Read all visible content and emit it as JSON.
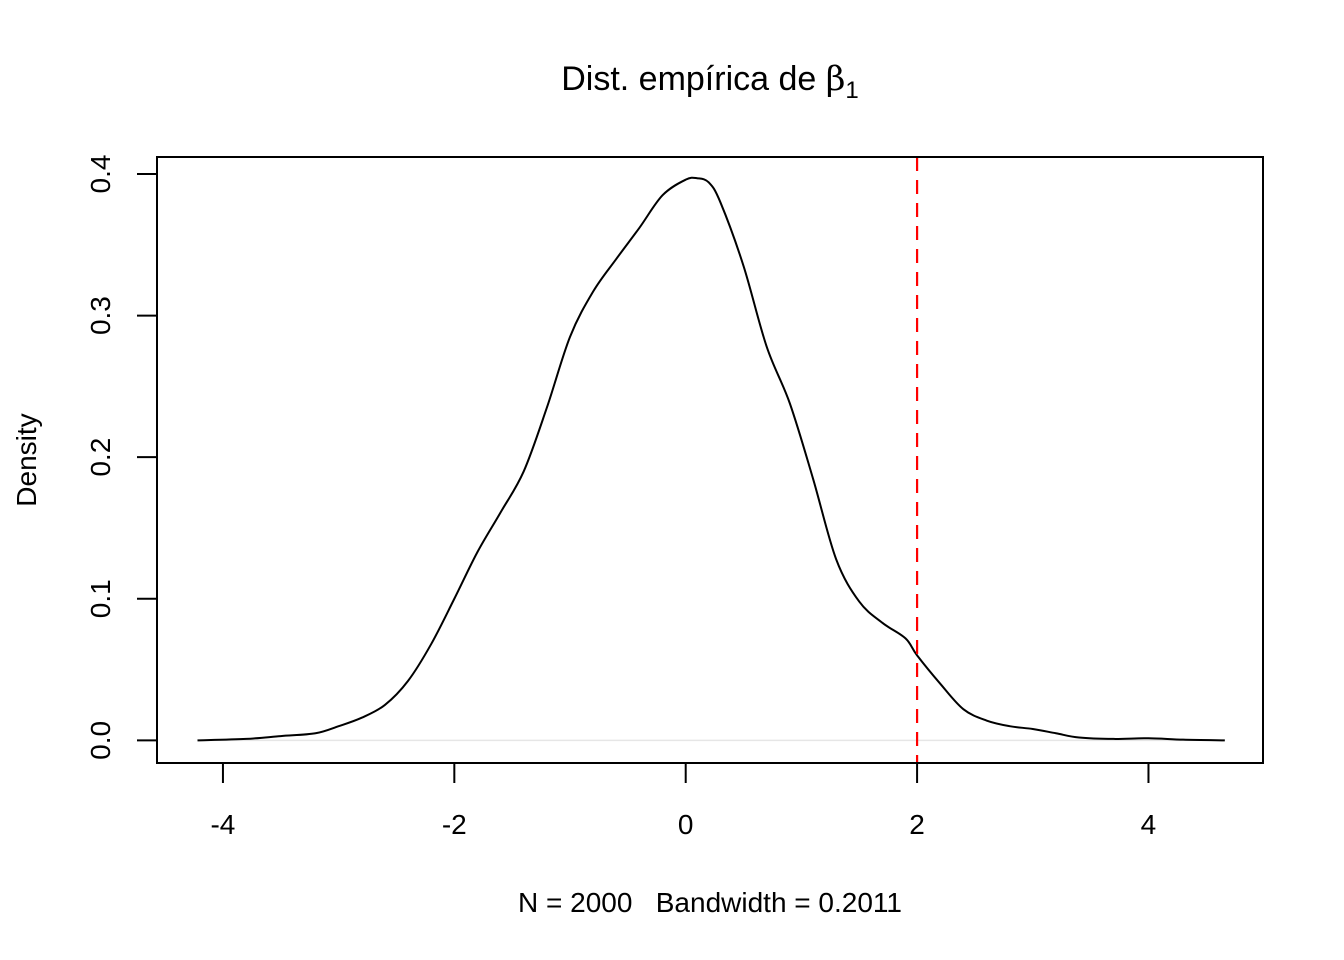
{
  "chart_data": {
    "type": "line",
    "title": "Dist. empírica de ",
    "title_symbol": "β",
    "title_subscript": "1",
    "xlabel": "N = 2000   Bandwidth = 0.2011",
    "ylabel": "Density",
    "xlim": [
      -4.57,
      4.99
    ],
    "ylim": [
      -0.016,
      0.412
    ],
    "xticks": [
      -4,
      -2,
      0,
      2,
      4
    ],
    "xtick_labels": [
      "-4",
      "-2",
      "0",
      "2",
      "4"
    ],
    "yticks": [
      0,
      0.1,
      0.2,
      0.3,
      0.4
    ],
    "ytick_labels": [
      "0.0",
      "0.1",
      "0.2",
      "0.3",
      "0.4"
    ],
    "grid": false,
    "series": [
      {
        "color": "#000000",
        "x": [
          -4.22,
          -3.8,
          -3.5,
          -3.2,
          -3.0,
          -2.8,
          -2.6,
          -2.4,
          -2.2,
          -2.0,
          -1.8,
          -1.6,
          -1.4,
          -1.2,
          -1.0,
          -0.8,
          -0.6,
          -0.4,
          -0.2,
          0.0,
          0.1,
          0.2,
          0.3,
          0.5,
          0.7,
          0.9,
          1.1,
          1.3,
          1.5,
          1.7,
          1.9,
          2.0,
          2.2,
          2.4,
          2.6,
          2.8,
          3.0,
          3.2,
          3.4,
          3.7,
          4.0,
          4.3,
          4.66
        ],
        "y": [
          0.0,
          0.001,
          0.003,
          0.005,
          0.01,
          0.016,
          0.025,
          0.042,
          0.068,
          0.1,
          0.133,
          0.161,
          0.19,
          0.235,
          0.285,
          0.317,
          0.34,
          0.362,
          0.385,
          0.396,
          0.397,
          0.394,
          0.38,
          0.335,
          0.278,
          0.238,
          0.185,
          0.128,
          0.098,
          0.083,
          0.072,
          0.06,
          0.04,
          0.022,
          0.014,
          0.01,
          0.008,
          0.005,
          0.002,
          0.001,
          0.0015,
          0.0005,
          0.0
        ]
      }
    ],
    "reference_line": {
      "x": 2,
      "color": "#ff0000",
      "style": "dashed"
    },
    "baseline": {
      "y": 0,
      "color": "#e6e6e6"
    }
  }
}
